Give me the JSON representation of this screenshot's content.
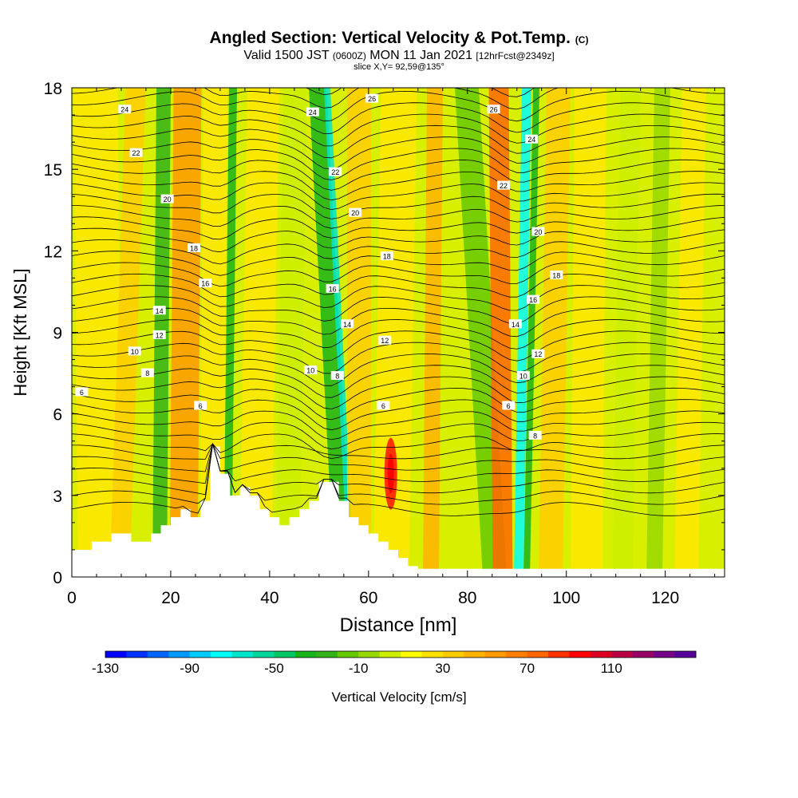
{
  "header": {
    "title": "Angled Section: Vertical Velocity & Pot.Temp.",
    "title_unit": "(C)",
    "subtitle_a": "Valid 1500 JST",
    "subtitle_small": "(0600Z)",
    "subtitle_b": "MON 11 Jan 2021",
    "subtitle_fcst": "[12hrFcst@2349z]",
    "slice": "slice X,Y= 92,59@135°"
  },
  "colorbar": {
    "title": "Vertical Velocity [cm/s]",
    "labels": [
      "-130",
      "-90",
      "-50",
      "-10",
      "30",
      "70",
      "110"
    ],
    "colors": [
      "#0000ff",
      "#0033ff",
      "#0066ff",
      "#0099ff",
      "#00ccff",
      "#00ffff",
      "#00e6cc",
      "#00d699",
      "#00c666",
      "#19b31a",
      "#33b31a",
      "#66c800",
      "#99d700",
      "#ccee00",
      "#ffff00",
      "#ffe200",
      "#ffcc00",
      "#ffb300",
      "#ff9900",
      "#ff8000",
      "#ff6600",
      "#ff3300",
      "#ff0000",
      "#dd0022",
      "#bb0044",
      "#990066",
      "#770088",
      "#550099"
    ]
  },
  "chart_data": {
    "type": "heatmap",
    "xlabel": "Distance [nm]",
    "ylabel": "Height [Kft MSL]",
    "xlim": [
      0,
      132
    ],
    "ylim": [
      0,
      18
    ],
    "xticks": [
      "0",
      "20",
      "40",
      "60",
      "80",
      "100",
      "120"
    ],
    "yticks": [
      "0",
      "3",
      "6",
      "9",
      "12",
      "15",
      "18"
    ],
    "field": "Vertical Velocity [cm/s]",
    "contour_field": "Potential Temperature (C)",
    "isentrope_labels": [
      {
        "v": "24",
        "x": 10.7,
        "y": 17.2
      },
      {
        "v": "26",
        "x": 60.7,
        "y": 17.6
      },
      {
        "v": "24",
        "x": 48.7,
        "y": 17.1
      },
      {
        "v": "26",
        "x": 85.3,
        "y": 17.2
      },
      {
        "v": "22",
        "x": 13.0,
        "y": 15.6
      },
      {
        "v": "24",
        "x": 93.0,
        "y": 16.1
      },
      {
        "v": "22",
        "x": 53.3,
        "y": 14.9
      },
      {
        "v": "22",
        "x": 87.3,
        "y": 14.4
      },
      {
        "v": "20",
        "x": 19.3,
        "y": 13.9
      },
      {
        "v": "20",
        "x": 57.3,
        "y": 13.4
      },
      {
        "v": "20",
        "x": 94.3,
        "y": 12.7
      },
      {
        "v": "18",
        "x": 24.7,
        "y": 12.1
      },
      {
        "v": "18",
        "x": 63.7,
        "y": 11.8
      },
      {
        "v": "18",
        "x": 98.0,
        "y": 11.1
      },
      {
        "v": "16",
        "x": 27.0,
        "y": 10.8
      },
      {
        "v": "16",
        "x": 52.7,
        "y": 10.6
      },
      {
        "v": "16",
        "x": 93.3,
        "y": 10.2
      },
      {
        "v": "14",
        "x": 17.7,
        "y": 9.8
      },
      {
        "v": "14",
        "x": 55.7,
        "y": 9.3
      },
      {
        "v": "14",
        "x": 89.7,
        "y": 9.3
      },
      {
        "v": "12",
        "x": 17.7,
        "y": 8.9
      },
      {
        "v": "12",
        "x": 63.3,
        "y": 8.7
      },
      {
        "v": "12",
        "x": 94.3,
        "y": 8.2
      },
      {
        "v": "10",
        "x": 12.7,
        "y": 8.3
      },
      {
        "v": "10",
        "x": 48.3,
        "y": 7.6
      },
      {
        "v": "10",
        "x": 91.3,
        "y": 7.4
      },
      {
        "v": "8",
        "x": 15.3,
        "y": 7.5
      },
      {
        "v": "8",
        "x": 53.7,
        "y": 7.4
      },
      {
        "v": "6",
        "x": 2.0,
        "y": 6.8
      },
      {
        "v": "6",
        "x": 26.0,
        "y": 6.3
      },
      {
        "v": "6",
        "x": 63.0,
        "y": 6.3
      },
      {
        "v": "6",
        "x": 88.3,
        "y": 6.3
      },
      {
        "v": "8",
        "x": 93.7,
        "y": 5.2
      }
    ],
    "terrain_x": [
      0,
      4,
      4,
      8,
      8,
      12,
      12,
      16,
      16,
      18,
      18,
      20,
      20,
      22,
      22,
      24,
      24,
      26,
      26,
      28,
      28,
      30,
      30,
      32,
      32,
      34,
      34,
      36,
      36,
      38,
      38,
      40,
      40,
      42,
      42,
      44,
      44,
      46,
      46,
      48,
      48,
      50,
      50,
      54,
      54,
      56,
      56,
      58,
      58,
      60,
      60,
      62,
      62,
      64,
      64,
      66,
      66,
      68,
      68,
      70,
      70,
      72,
      72,
      132
    ],
    "terrain_y": [
      1.0,
      1.0,
      1.3,
      1.3,
      1.6,
      1.6,
      1.3,
      1.3,
      1.6,
      1.6,
      1.9,
      1.9,
      2.2,
      2.2,
      2.5,
      2.5,
      2.2,
      2.2,
      2.8,
      2.8,
      4.8,
      4.8,
      3.8,
      3.8,
      3.0,
      3.0,
      3.3,
      3.3,
      3.0,
      3.0,
      2.5,
      2.5,
      2.2,
      2.2,
      1.9,
      1.9,
      2.2,
      2.2,
      2.5,
      2.5,
      2.8,
      2.8,
      3.5,
      3.5,
      2.8,
      2.8,
      2.2,
      2.2,
      1.9,
      1.9,
      1.6,
      1.6,
      1.3,
      1.3,
      1.0,
      1.0,
      0.7,
      0.7,
      0.4,
      0.4,
      0.3,
      0.3,
      0.3,
      0.3
    ]
  }
}
